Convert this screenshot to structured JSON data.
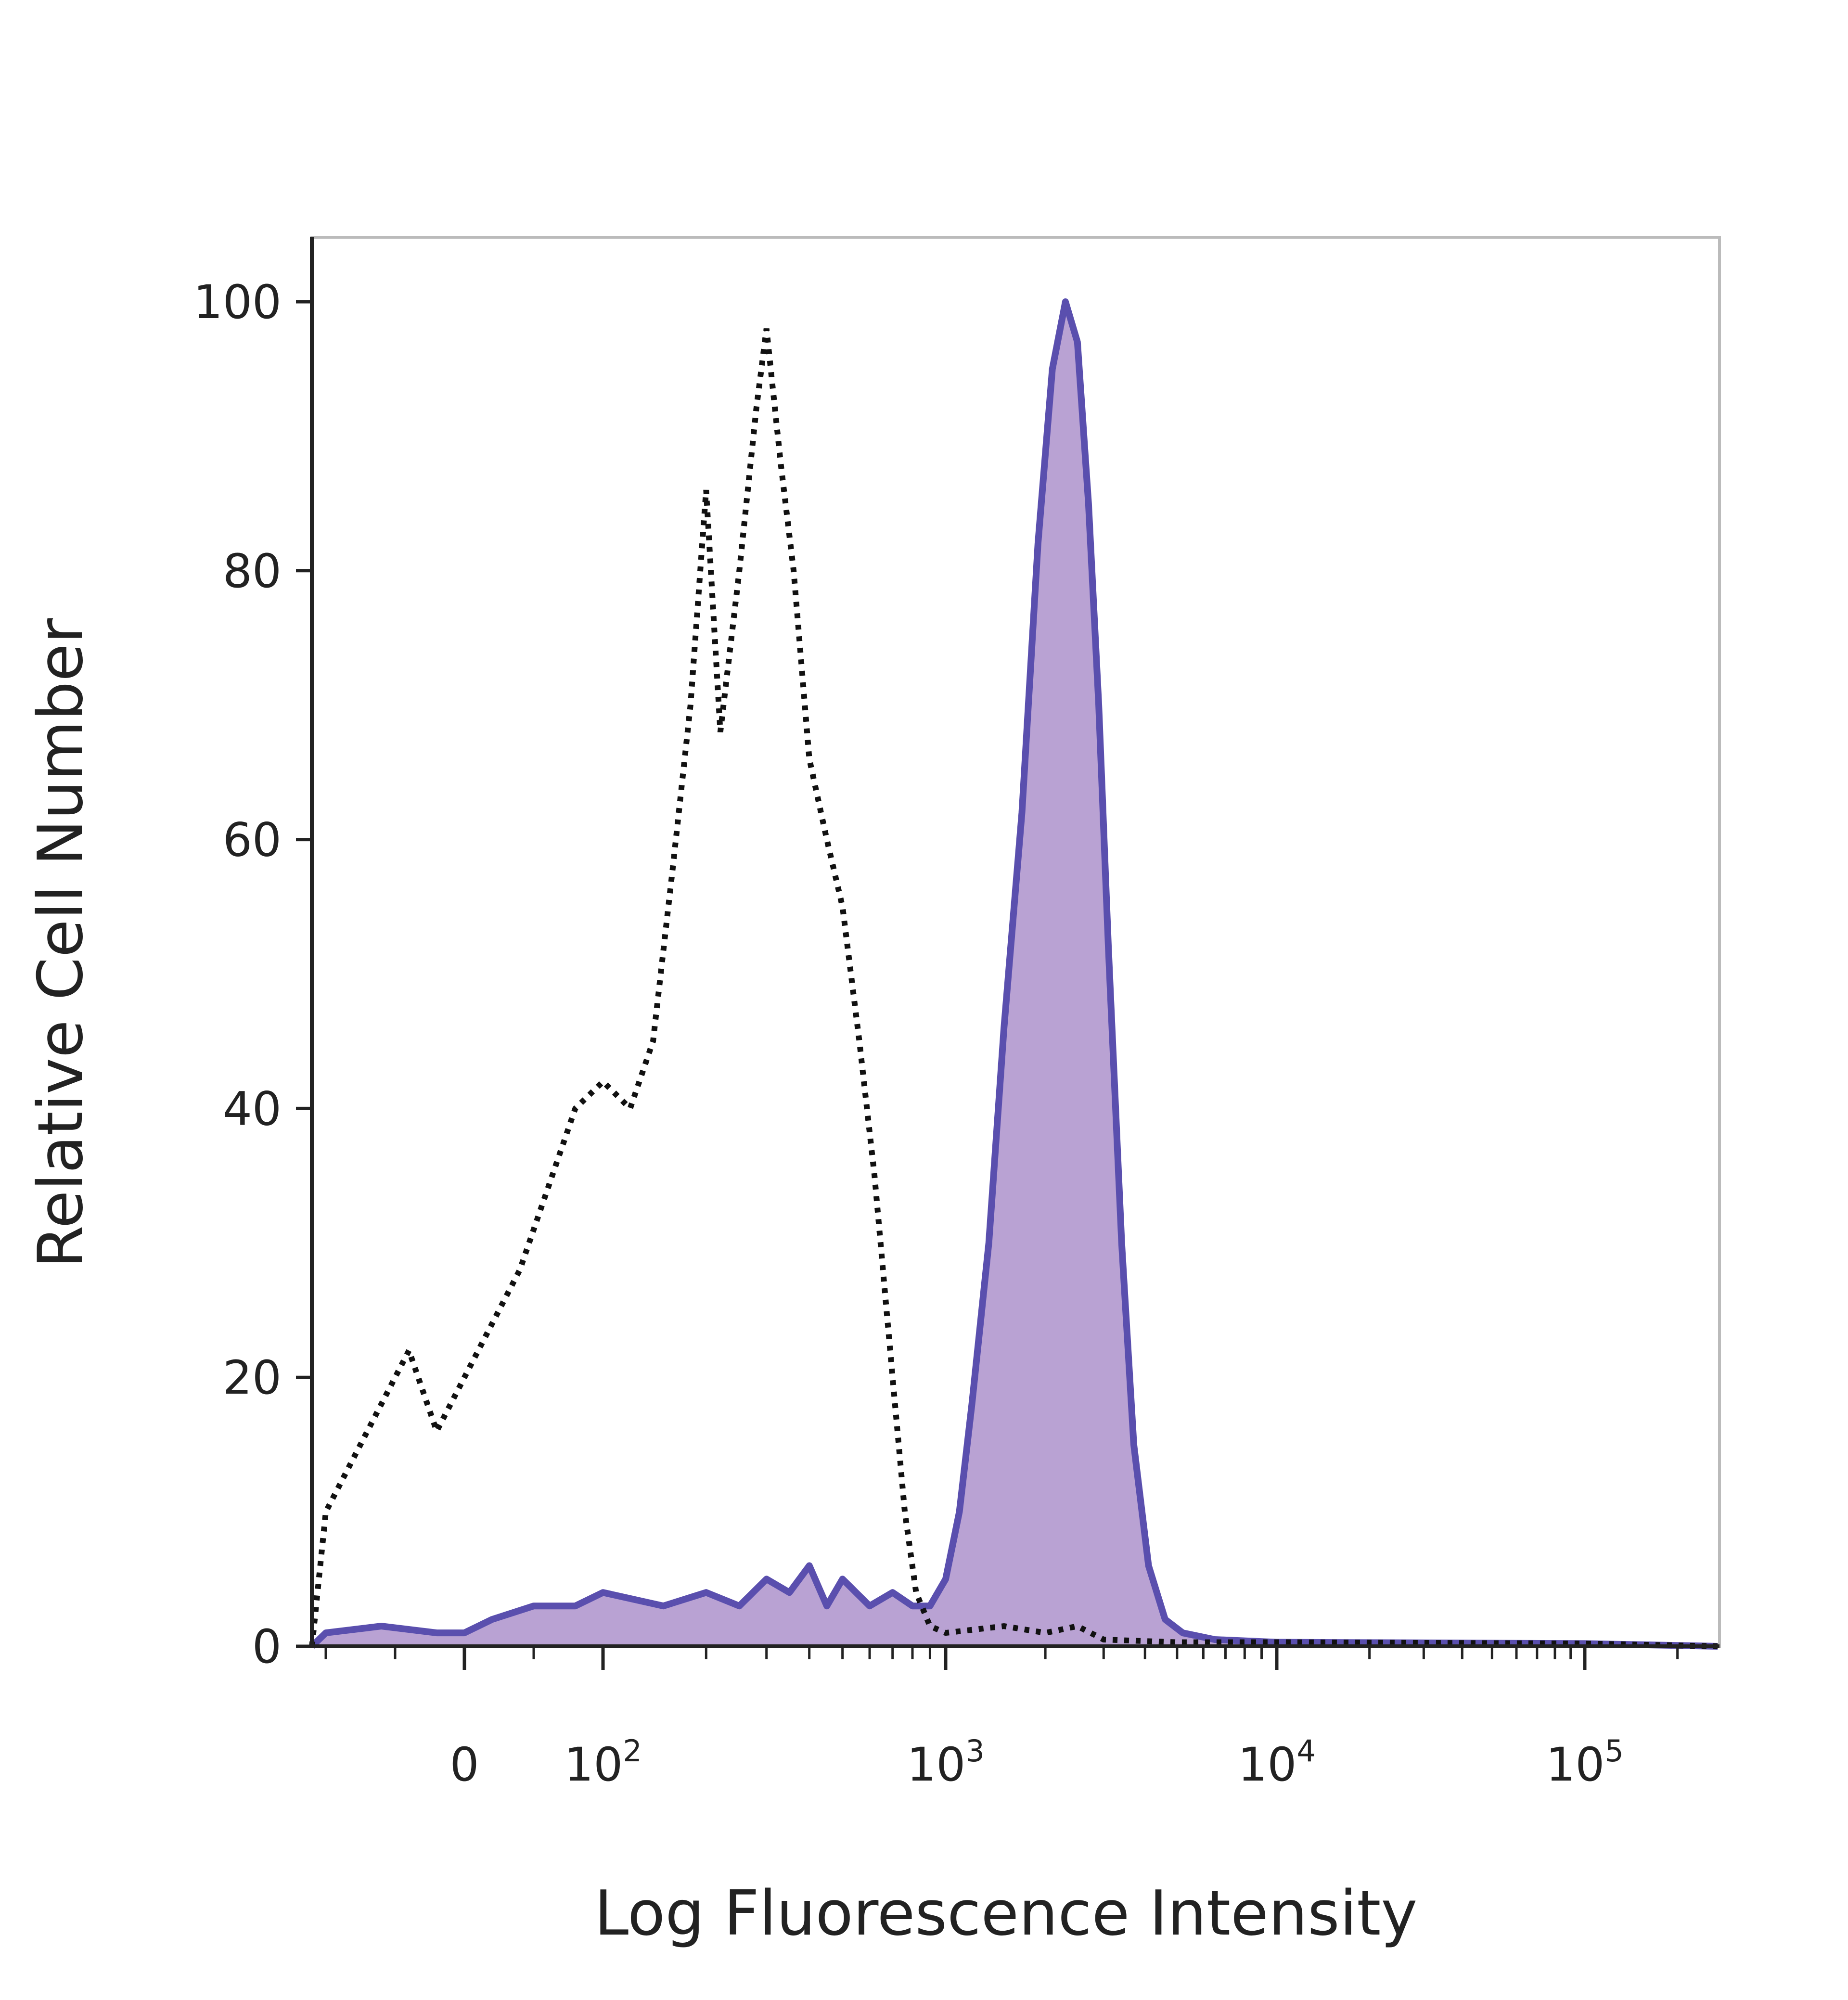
{
  "chart_data": {
    "type": "histogram",
    "title": "",
    "xlabel": "Log Fluorescence Intensity",
    "ylabel": "Relative Cell Number",
    "x_scale": "biexponential",
    "xlim": [
      -110,
      270000
    ],
    "ylim": [
      0,
      100
    ],
    "x_ticks": [
      {
        "value": 0,
        "label": "0",
        "exp": ""
      },
      {
        "value": 100,
        "label": "10",
        "exp": "2"
      },
      {
        "value": 1000,
        "label": "10",
        "exp": "3"
      },
      {
        "value": 10000,
        "label": "10",
        "exp": "4"
      },
      {
        "value": 100000,
        "label": "10",
        "exp": "5"
      }
    ],
    "y_ticks": [
      0,
      20,
      40,
      60,
      80,
      100
    ],
    "grid": false,
    "series": [
      {
        "style": "dotted-outline",
        "color": "#111111",
        "x": [
          -110,
          -100,
          -80,
          -60,
          -40,
          -20,
          0,
          20,
          40,
          60,
          80,
          100,
          120,
          140,
          160,
          180,
          200,
          220,
          250,
          280,
          300,
          330,
          360,
          400,
          450,
          500,
          560,
          620,
          700,
          760,
          820,
          900,
          1000,
          1500,
          2000,
          2500,
          3000,
          5000,
          10000,
          100000,
          270000
        ],
        "y": [
          0,
          10,
          14,
          18,
          22,
          16,
          20,
          24,
          28,
          34,
          40,
          42,
          40,
          45,
          58,
          70,
          86,
          68,
          80,
          92,
          98,
          88,
          80,
          66,
          60,
          55,
          45,
          35,
          20,
          10,
          4,
          1.5,
          1,
          1.5,
          1,
          1.5,
          0.5,
          0.3,
          0.3,
          0.2,
          0
        ]
      },
      {
        "style": "filled",
        "color": "#5a4fae",
        "fill": "#b9a2d3",
        "x": [
          -110,
          -100,
          -60,
          -20,
          0,
          20,
          50,
          80,
          100,
          150,
          200,
          250,
          300,
          350,
          400,
          450,
          500,
          600,
          700,
          800,
          900,
          1000,
          1100,
          1200,
          1350,
          1500,
          1700,
          1900,
          2100,
          2300,
          2500,
          2700,
          2900,
          3100,
          3400,
          3700,
          4100,
          4600,
          5200,
          6500,
          10000,
          100000,
          270000
        ],
        "y": [
          0,
          1,
          1.5,
          1,
          1,
          2,
          3,
          3,
          4,
          3,
          4,
          3,
          5,
          4,
          6,
          3,
          5,
          3,
          4,
          3,
          3,
          5,
          10,
          18,
          30,
          46,
          62,
          82,
          95,
          100,
          97,
          85,
          70,
          52,
          30,
          15,
          6,
          2,
          1,
          0.5,
          0.3,
          0.2,
          0
        ]
      }
    ]
  }
}
